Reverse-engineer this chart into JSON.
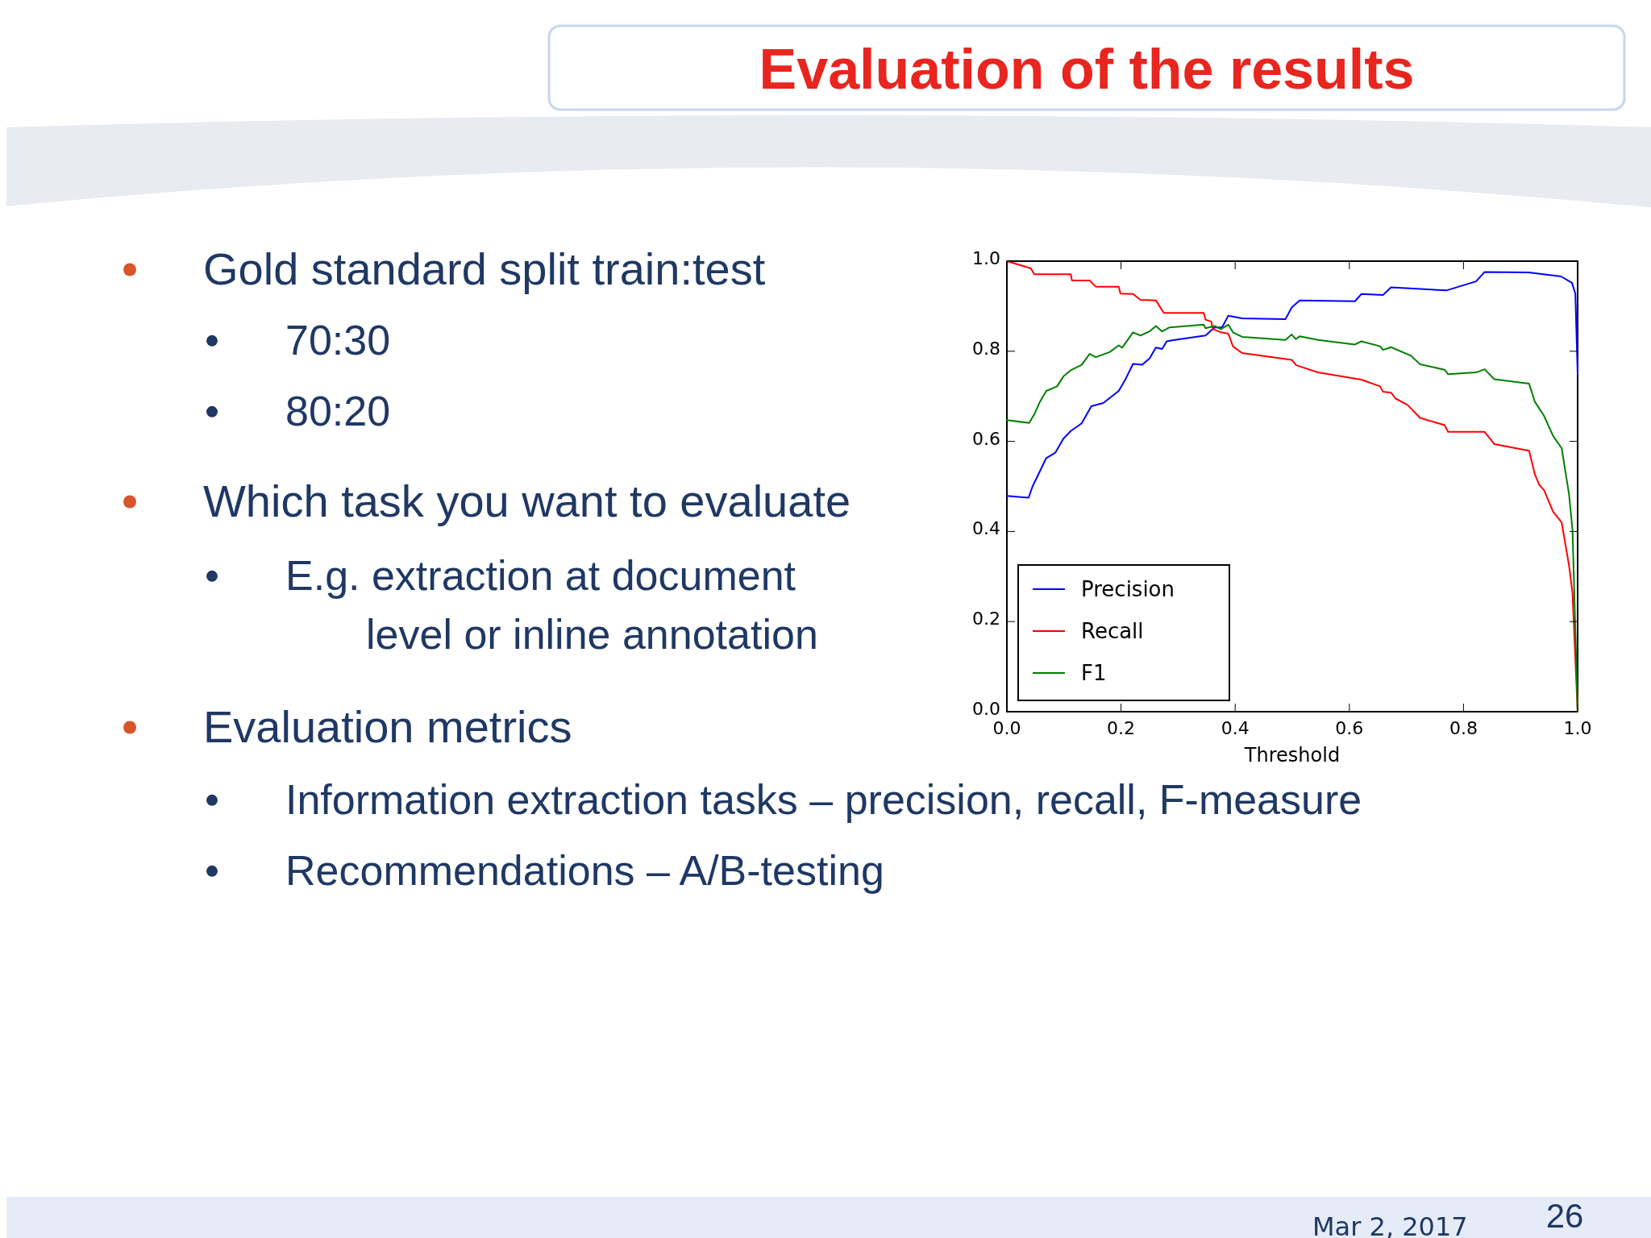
{
  "chart_data": {
    "type": "line",
    "title": "Evaluation of the results",
    "xlabel": "Threshold",
    "xlim": [
      0,
      1
    ],
    "ylim": [
      0,
      1
    ],
    "xticks": [
      {
        "value": 0,
        "label": "0.0"
      },
      {
        "value": 0.2,
        "label": "0.2"
      },
      {
        "value": 0.4,
        "label": "0.4"
      },
      {
        "value": 0.6,
        "label": "0.6"
      },
      {
        "value": 0.8,
        "label": "0.8"
      },
      {
        "value": 1,
        "label": "1.0"
      }
    ],
    "yticks": [
      {
        "value": 0,
        "label": "0.0"
      },
      {
        "value": 0.2,
        "label": "0.2"
      },
      {
        "value": 0.4,
        "label": "0.4"
      },
      {
        "value": 0.6,
        "label": "0.6"
      },
      {
        "value": 0.8,
        "label": "0.8"
      },
      {
        "value": 1,
        "label": "1.0"
      }
    ],
    "grid": false,
    "legend": "bottom left",
    "line_style": "solid",
    "series": [
      {
        "name": "Precision",
        "color": "#0000ff",
        "x": [
          0,
          0.038,
          0.045,
          0.069,
          0.085,
          0.099,
          0.112,
          0.131,
          0.148,
          0.169,
          0.196,
          0.207,
          0.221,
          0.237,
          0.25,
          0.261,
          0.272,
          0.28,
          0.294,
          0.348,
          0.364,
          0.377,
          0.388,
          0.412,
          0.488,
          0.499,
          0.513,
          0.61,
          0.621,
          0.659,
          0.673,
          0.77,
          0.822,
          0.837,
          0.914,
          0.971,
          0.99,
          0.996,
          1.0
        ],
        "values": [
          0.479,
          0.475,
          0.5,
          0.563,
          0.575,
          0.606,
          0.623,
          0.64,
          0.678,
          0.685,
          0.712,
          0.736,
          0.772,
          0.77,
          0.784,
          0.808,
          0.805,
          0.822,
          0.825,
          0.835,
          0.853,
          0.853,
          0.879,
          0.873,
          0.871,
          0.897,
          0.913,
          0.911,
          0.927,
          0.925,
          0.942,
          0.935,
          0.955,
          0.976,
          0.975,
          0.966,
          0.952,
          0.928,
          0.75
        ]
      },
      {
        "name": "Recall",
        "color": "#ff0000",
        "x": [
          0,
          0.042,
          0.048,
          0.112,
          0.114,
          0.145,
          0.156,
          0.196,
          0.199,
          0.221,
          0.234,
          0.261,
          0.275,
          0.345,
          0.348,
          0.358,
          0.361,
          0.375,
          0.388,
          0.396,
          0.412,
          0.499,
          0.507,
          0.545,
          0.621,
          0.654,
          0.659,
          0.673,
          0.681,
          0.702,
          0.724,
          0.767,
          0.773,
          0.837,
          0.854,
          0.915,
          0.925,
          0.933,
          0.941,
          0.957,
          0.972,
          0.985,
          0.991,
          1.0
        ],
        "values": [
          1.0,
          0.984,
          0.971,
          0.971,
          0.957,
          0.957,
          0.943,
          0.943,
          0.928,
          0.927,
          0.914,
          0.913,
          0.885,
          0.885,
          0.87,
          0.866,
          0.849,
          0.842,
          0.839,
          0.811,
          0.796,
          0.781,
          0.769,
          0.753,
          0.737,
          0.722,
          0.71,
          0.708,
          0.695,
          0.681,
          0.652,
          0.636,
          0.621,
          0.621,
          0.594,
          0.579,
          0.527,
          0.503,
          0.492,
          0.444,
          0.42,
          0.324,
          0.263,
          0.0
        ]
      },
      {
        "name": "F1",
        "color": "#008000",
        "x": [
          0,
          0.039,
          0.048,
          0.058,
          0.069,
          0.088,
          0.099,
          0.112,
          0.131,
          0.145,
          0.156,
          0.18,
          0.196,
          0.202,
          0.221,
          0.234,
          0.25,
          0.261,
          0.272,
          0.285,
          0.345,
          0.348,
          0.364,
          0.375,
          0.388,
          0.396,
          0.412,
          0.488,
          0.499,
          0.506,
          0.513,
          0.545,
          0.61,
          0.621,
          0.654,
          0.659,
          0.673,
          0.708,
          0.724,
          0.767,
          0.773,
          0.822,
          0.837,
          0.854,
          0.915,
          0.925,
          0.941,
          0.957,
          0.972,
          0.985,
          0.991,
          1.0
        ],
        "values": [
          0.647,
          0.641,
          0.66,
          0.688,
          0.712,
          0.722,
          0.744,
          0.758,
          0.77,
          0.794,
          0.787,
          0.798,
          0.813,
          0.808,
          0.842,
          0.835,
          0.844,
          0.856,
          0.844,
          0.853,
          0.859,
          0.851,
          0.856,
          0.849,
          0.859,
          0.842,
          0.832,
          0.825,
          0.837,
          0.827,
          0.833,
          0.825,
          0.815,
          0.822,
          0.811,
          0.803,
          0.809,
          0.79,
          0.771,
          0.759,
          0.749,
          0.753,
          0.76,
          0.738,
          0.728,
          0.688,
          0.657,
          0.612,
          0.585,
          0.482,
          0.403,
          0.0
        ]
      }
    ],
    "annotations": [
      "Gold standard split train:test",
      "70:30",
      "80:20",
      "Which task you want to evaluate",
      "E.g. extraction at document level or inline annotation",
      "Evaluation metrics",
      "Information extraction tasks – precision, recall, F-measure",
      "Recommendations – A/B-testing",
      "Mar 2, 2017",
      "26"
    ]
  }
}
